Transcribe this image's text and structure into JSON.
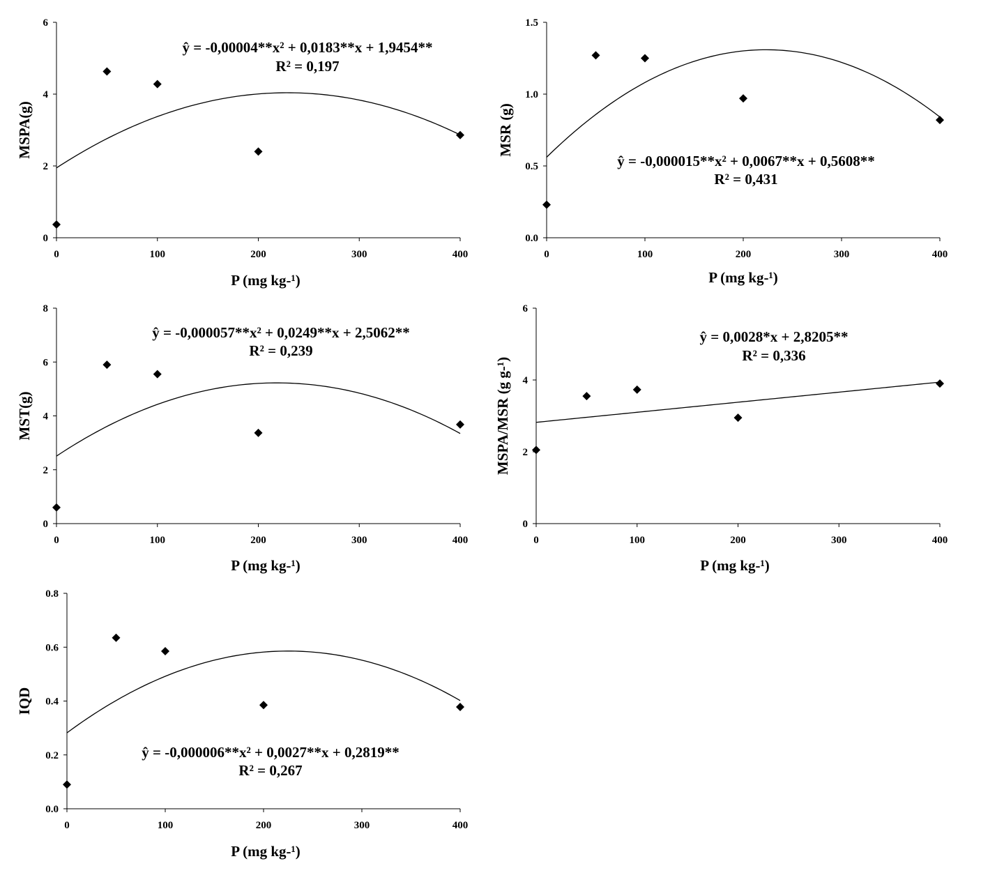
{
  "chart_data": [
    {
      "id": "mspa",
      "type": "scatter",
      "fit": "quadratic",
      "ylabel": "MSPA(g)",
      "xlabel": "P (mg kg-¹)",
      "xlim": [
        0,
        400
      ],
      "ylim": [
        0,
        6
      ],
      "xticks": [
        "0",
        "100",
        "200",
        "300",
        "400"
      ],
      "yticks": [
        "0",
        "2",
        "4",
        "6"
      ],
      "points": [
        {
          "x": 0,
          "y": 0.37
        },
        {
          "x": 50,
          "y": 4.63
        },
        {
          "x": 100,
          "y": 4.28
        },
        {
          "x": 200,
          "y": 2.4
        },
        {
          "x": 400,
          "y": 2.86
        }
      ],
      "coef": [
        -4e-05,
        0.0183,
        1.9454
      ],
      "equation": "ŷ  = -0,00004**x² + 0,0183**x + 1,9454**",
      "r2": "R² = 0,197"
    },
    {
      "id": "msr",
      "type": "scatter",
      "fit": "quadratic",
      "ylabel": "MSR (g)",
      "xlabel": "P (mg kg-¹)",
      "xlim": [
        0,
        400
      ],
      "ylim": [
        0,
        1.5
      ],
      "xticks": [
        "0",
        "100",
        "200",
        "300",
        "400"
      ],
      "yticks": [
        "0.0",
        "0.5",
        "1.0",
        "1.5"
      ],
      "points": [
        {
          "x": 0,
          "y": 0.23
        },
        {
          "x": 50,
          "y": 1.27
        },
        {
          "x": 100,
          "y": 1.25
        },
        {
          "x": 200,
          "y": 0.97
        },
        {
          "x": 400,
          "y": 0.82
        }
      ],
      "coef": [
        -1.5e-05,
        0.0067,
        0.5608
      ],
      "equation": "ŷ = -0,000015**x² + 0,0067**x + 0,5608**",
      "r2": "R² = 0,431"
    },
    {
      "id": "mst",
      "type": "scatter",
      "fit": "quadratic",
      "ylabel": "MST(g)",
      "xlabel": "P (mg kg-¹)",
      "xlim": [
        0,
        400
      ],
      "ylim": [
        0,
        8
      ],
      "xticks": [
        "0",
        "100",
        "200",
        "300",
        "400"
      ],
      "yticks": [
        "0",
        "2",
        "4",
        "6",
        "8"
      ],
      "points": [
        {
          "x": 0,
          "y": 0.6
        },
        {
          "x": 50,
          "y": 5.9
        },
        {
          "x": 100,
          "y": 5.55
        },
        {
          "x": 200,
          "y": 3.37
        },
        {
          "x": 400,
          "y": 3.68
        }
      ],
      "coef": [
        -5.7e-05,
        0.0249,
        2.5062
      ],
      "equation": "ŷ = -0,000057**x² + 0,0249**x + 2,5062**",
      "r2": "R² = 0,239"
    },
    {
      "id": "mspa-msr",
      "type": "scatter",
      "fit": "linear",
      "ylabel": "MSPA/MSR (g g-¹)",
      "xlabel": "P (mg kg-¹)",
      "xlim": [
        0,
        400
      ],
      "ylim": [
        0,
        6
      ],
      "xticks": [
        "0",
        "100",
        "200",
        "300",
        "400"
      ],
      "yticks": [
        "0",
        "2",
        "4",
        "6"
      ],
      "points": [
        {
          "x": 0,
          "y": 2.05
        },
        {
          "x": 50,
          "y": 3.55
        },
        {
          "x": 100,
          "y": 3.73
        },
        {
          "x": 200,
          "y": 2.95
        },
        {
          "x": 400,
          "y": 3.9
        }
      ],
      "coef": [
        0,
        0.0028,
        2.8205
      ],
      "equation": "ŷ = 0,0028*x + 2,8205**",
      "r2": "R² = 0,336"
    },
    {
      "id": "iqd",
      "type": "scatter",
      "fit": "quadratic",
      "ylabel": "IQD",
      "xlabel": "P (mg kg-¹)",
      "xlim": [
        0,
        400
      ],
      "ylim": [
        0,
        0.8
      ],
      "xticks": [
        "0",
        "100",
        "200",
        "300",
        "400"
      ],
      "yticks": [
        "0.0",
        "0.2",
        "0.4",
        "0.6",
        "0.8"
      ],
      "points": [
        {
          "x": 0,
          "y": 0.09
        },
        {
          "x": 50,
          "y": 0.635
        },
        {
          "x": 100,
          "y": 0.585
        },
        {
          "x": 200,
          "y": 0.385
        },
        {
          "x": 400,
          "y": 0.378
        }
      ],
      "coef": [
        -6e-06,
        0.0027,
        0.2819
      ],
      "equation": "ŷ = -0,000006**x² + 0,0027**x + 0,2819**",
      "r2": "R² = 0,267"
    }
  ]
}
